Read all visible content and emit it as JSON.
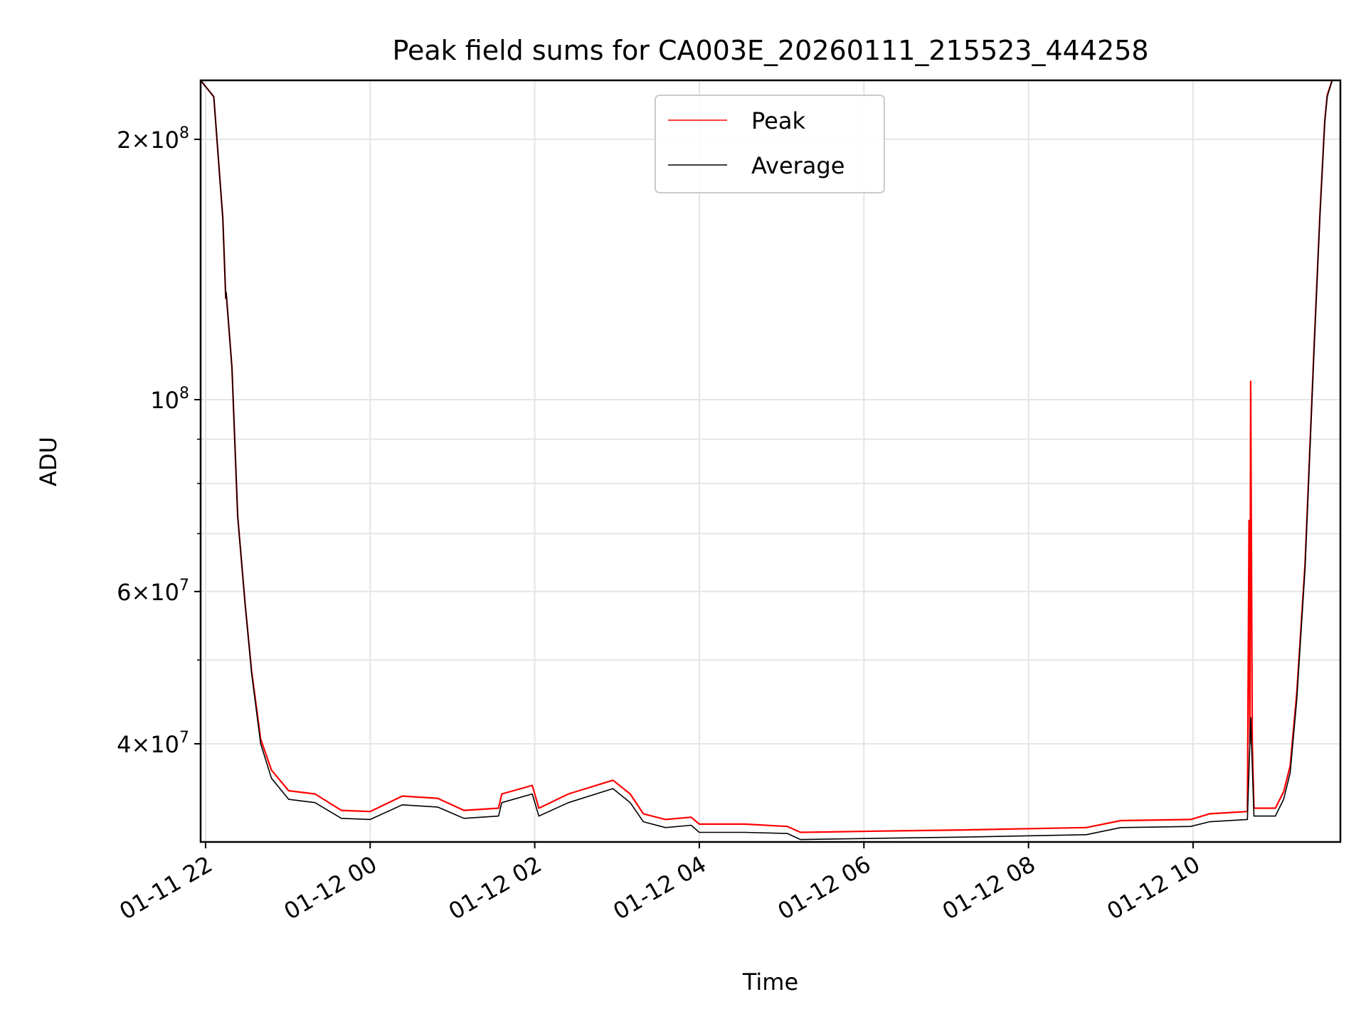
{
  "chart_data": {
    "type": "line",
    "title": "Peak field sums for CA003E_20260111_215523_444258",
    "xlabel": "Time",
    "ylabel": "ADU",
    "yscale": "log",
    "xlim_hours_from_0111_0000": [
      21.94,
      35.79
    ],
    "ylim": [
      30800000,
      234000000
    ],
    "grid": true,
    "legend_placement": "upper-center",
    "x_ticks": [
      {
        "value": 22,
        "label": "01-11 22"
      },
      {
        "value": 24,
        "label": "01-12 00"
      },
      {
        "value": 26,
        "label": "01-12 02"
      },
      {
        "value": 28,
        "label": "01-12 04"
      },
      {
        "value": 30,
        "label": "01-12 06"
      },
      {
        "value": 32,
        "label": "01-12 08"
      },
      {
        "value": 34,
        "label": "01-12 10"
      }
    ],
    "y_ticks": [
      {
        "value": 200000000,
        "mant": "2",
        "exp": "8"
      },
      {
        "value": 100000000,
        "mant": "",
        "exp": "8"
      },
      {
        "value": 60000000,
        "mant": "6",
        "exp": "7"
      },
      {
        "value": 40000000,
        "mant": "4",
        "exp": "7"
      }
    ],
    "y_minor": [
      50000000,
      70000000,
      80000000,
      90000000
    ],
    "series": [
      {
        "name": "Peak",
        "color": "#ff0000",
        "x": [
          21.94,
          22.1,
          22.21,
          22.245,
          22.25,
          22.32,
          22.39,
          22.48,
          22.56,
          22.67,
          22.8,
          23.01,
          23.33,
          23.65,
          24.0,
          24.39,
          24.82,
          25.14,
          25.56,
          25.6,
          25.97,
          26.05,
          26.41,
          26.95,
          27.16,
          27.32,
          27.59,
          27.9,
          28.0,
          28.55,
          29.07,
          29.23,
          30.14,
          31.2,
          32.7,
          33.12,
          33.97,
          34.2,
          34.66,
          34.68,
          34.69,
          34.7,
          34.72,
          34.74,
          35.0,
          35.1,
          35.18,
          35.26,
          35.36,
          35.47,
          35.54,
          35.6,
          35.63,
          35.69
        ],
        "values": [
          234000000,
          224000000,
          162000000,
          131000000,
          133000000,
          109000000,
          73300000,
          58100000,
          48500000,
          40500000,
          37300000,
          35300000,
          35000000,
          33500000,
          33400000,
          34800000,
          34600000,
          33500000,
          33700000,
          35000000,
          35800000,
          33700000,
          35000000,
          36300000,
          35000000,
          33200000,
          32700000,
          32900000,
          32300000,
          32300000,
          32100000,
          31600000,
          31700000,
          31800000,
          32000000,
          32600000,
          32700000,
          33200000,
          33400000,
          72500000,
          40000000,
          105000000,
          40000000,
          33700000,
          33700000,
          35200000,
          37700000,
          45800000,
          64500000,
          115000000,
          163000000,
          210000000,
          225000000,
          234000000
        ]
      },
      {
        "name": "Average",
        "color": "#000000",
        "x": [
          21.94,
          22.1,
          22.21,
          22.245,
          22.25,
          22.32,
          22.39,
          22.48,
          22.56,
          22.67,
          22.8,
          23.01,
          23.33,
          23.65,
          24.0,
          24.39,
          24.82,
          25.14,
          25.56,
          25.6,
          25.97,
          26.05,
          26.41,
          26.95,
          27.16,
          27.32,
          27.59,
          27.9,
          28.0,
          28.55,
          29.07,
          29.23,
          30.14,
          31.2,
          32.7,
          33.12,
          33.97,
          34.2,
          34.66,
          34.7,
          34.74,
          35.0,
          35.1,
          35.18,
          35.26,
          35.36,
          35.47,
          35.54,
          35.6,
          35.63,
          35.69
        ],
        "values": [
          234000000,
          224000000,
          162000000,
          131000000,
          133000000,
          109000000,
          73300000,
          58100000,
          48200000,
          40000000,
          36500000,
          34500000,
          34200000,
          32800000,
          32700000,
          34000000,
          33800000,
          32800000,
          33000000,
          34200000,
          35000000,
          33000000,
          34200000,
          35500000,
          34200000,
          32500000,
          32000000,
          32200000,
          31600000,
          31600000,
          31500000,
          31000000,
          31100000,
          31200000,
          31400000,
          32000000,
          32100000,
          32500000,
          32700000,
          42900000,
          33000000,
          33000000,
          34500000,
          37000000,
          45000000,
          63700000,
          114000000,
          162000000,
          209000000,
          224000000,
          234000000
        ]
      }
    ]
  }
}
